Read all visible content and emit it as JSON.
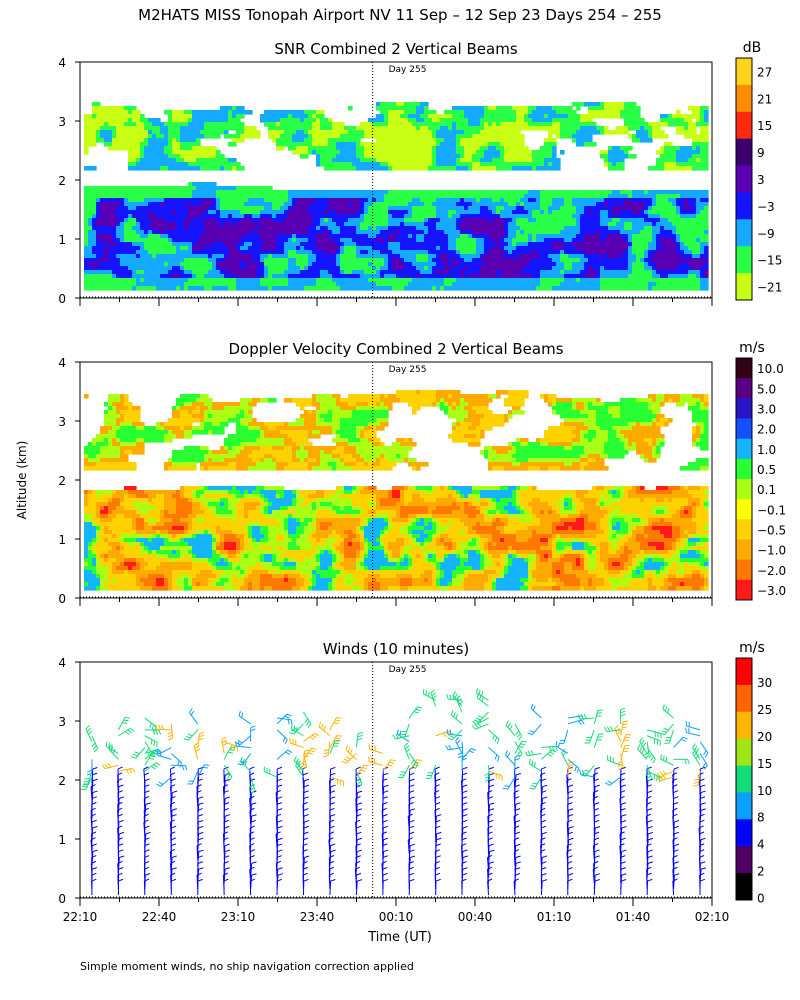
{
  "figure": {
    "title": "M2HATS MISS Tonopah Airport NV  11 Sep – 12 Sep 23 Days 254 – 255",
    "ylabel": "Altitude (km)",
    "xlabel": "Time (UT)",
    "footnote": "Simple moment winds, no ship navigation correction applied"
  },
  "chart_data": [
    {
      "type": "heatmap",
      "title": "SNR Combined 2 Vertical Beams",
      "units": "dB",
      "day_marker_label": "Day 255",
      "x_ticks": [
        "22:10",
        "22:40",
        "23:10",
        "23:40",
        "00:10",
        "00:40",
        "01:10",
        "01:40",
        "02:10"
      ],
      "y_ticks": [
        "0",
        "1",
        "2",
        "3",
        "4"
      ],
      "ylim": [
        0,
        4
      ],
      "colorbar_labels": [
        "27",
        "21",
        "15",
        "9",
        "3",
        "−3",
        "−9",
        "−15",
        "−21"
      ],
      "colorbar_colors": [
        "#ffd21e",
        "#ff8c00",
        "#ff2a10",
        "#3c006e",
        "#5a00b4",
        "#1414ff",
        "#14aaff",
        "#28ff46",
        "#c8ff14"
      ],
      "structure": {
        "noise_floor_km": 0.15,
        "strong_layer_top_km": [
          1.85,
          2.05
        ],
        "upper_layer_km": [
          2.2,
          3.4
        ],
        "upper_layer_level_dB": -15,
        "boundary_layer_level_dB": -3
      }
    },
    {
      "type": "heatmap",
      "title": "Doppler Velocity Combined 2 Vertical Beams",
      "units": "m/s",
      "day_marker_label": "Day 255",
      "x_ticks": [
        "22:10",
        "22:40",
        "23:10",
        "23:40",
        "00:10",
        "00:40",
        "01:10",
        "01:40",
        "02:10"
      ],
      "y_ticks": [
        "0",
        "1",
        "2",
        "3",
        "4"
      ],
      "ylim": [
        0,
        4
      ],
      "colorbar_labels": [
        "10.0",
        "5.0",
        "3.0",
        "2.0",
        "1.0",
        "0.5",
        "0.1",
        "−0.1",
        "−0.5",
        "−1.0",
        "−2.0",
        "−3.0"
      ],
      "colorbar_colors": [
        "#320014",
        "#5a0082",
        "#2a14c8",
        "#1450ff",
        "#14b4ff",
        "#28ff32",
        "#aaff14",
        "#ffff00",
        "#ffd200",
        "#ffaa00",
        "#ff7800",
        "#ff1a1a"
      ],
      "structure": {
        "noise_floor_km": 0.15,
        "boundary_layer_top_km": [
          1.8,
          2.0
        ],
        "upper_layer_km": [
          2.2,
          3.6
        ],
        "typical_velocity_ms": -0.5
      }
    },
    {
      "type": "wind_barbs",
      "title": "Winds (10 minutes)",
      "units": "m/s",
      "day_marker_label": "Day 255",
      "x_ticks": [
        "22:10",
        "22:40",
        "23:10",
        "23:40",
        "00:10",
        "00:40",
        "01:10",
        "01:40",
        "02:10"
      ],
      "y_ticks": [
        "0",
        "1",
        "2",
        "3",
        "4"
      ],
      "ylim": [
        0,
        4
      ],
      "colorbar_labels": [
        "30",
        "25",
        "20",
        "15",
        "10",
        "8",
        "4",
        "2",
        "0"
      ],
      "colorbar_colors": [
        "#ff0000",
        "#ff6400",
        "#ffb400",
        "#a0e614",
        "#14dc78",
        "#0aa0ff",
        "#0000ff",
        "#500064",
        "#000000"
      ],
      "structure": {
        "profile_interval_minutes": 10,
        "lower_wind_speed_ms": 5,
        "upper_wind_speed_ms": 12,
        "lower_layer_top_km": 2.0,
        "max_altitude_km": 4.0
      }
    }
  ]
}
